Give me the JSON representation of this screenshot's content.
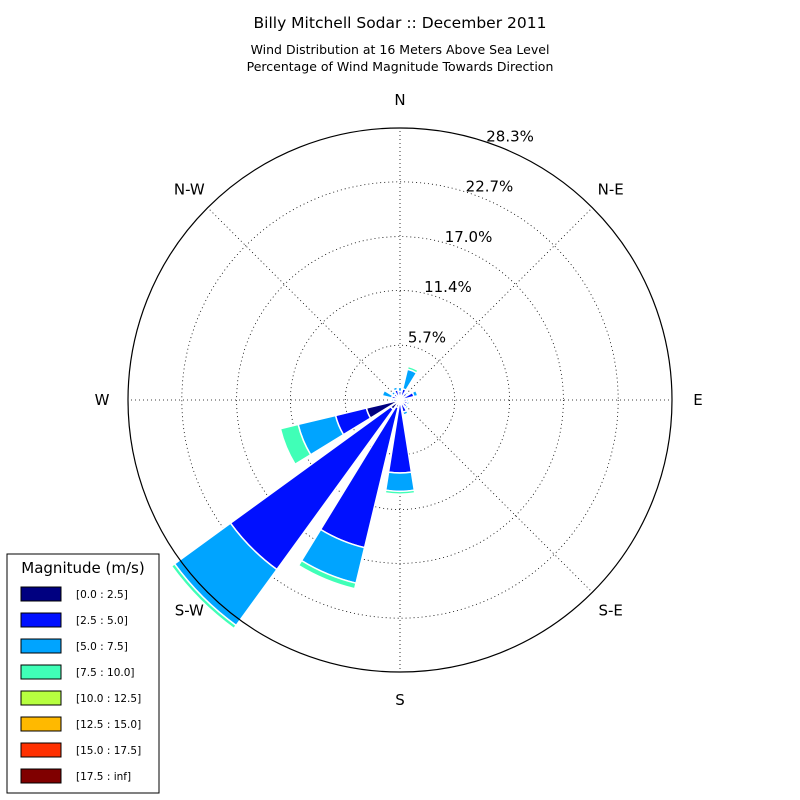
{
  "chart_data": {
    "type": "windrose",
    "title": "Billy Mitchell Sodar :: December 2011",
    "subtitle_lines": [
      "Wind Distribution at 16 Meters Above Sea Level",
      "Percentage of Wind Magnitude Towards Direction"
    ],
    "directions": [
      "N",
      "N-E",
      "E",
      "S-E",
      "S",
      "S-W",
      "W",
      "N-W"
    ],
    "rmax": 28.3,
    "ring_labels": [
      "5.7%",
      "11.4%",
      "17.0%",
      "22.7%",
      "28.3%"
    ],
    "ring_values": [
      5.7,
      11.4,
      17.0,
      22.7,
      28.3
    ],
    "grid": true,
    "legend": {
      "title": "Magnitude (m/s)",
      "placement": "lower-left",
      "bins": [
        {
          "label": "[0.0 : 2.5]",
          "color": "#000080"
        },
        {
          "label": "[2.5 : 5.0]",
          "color": "#0010ff"
        },
        {
          "label": "[5.0 : 7.5]",
          "color": "#00a4ff"
        },
        {
          "label": "[7.5 : 10.0]",
          "color": "#40ffb7"
        },
        {
          "label": "[10.0 : 12.5]",
          "color": "#b7ff40"
        },
        {
          "label": "[12.5 : 15.0]",
          "color": "#ffb900"
        },
        {
          "label": "[15.0 : 17.5]",
          "color": "#ff3000"
        },
        {
          "label": "[17.5 : inf]",
          "color": "#800000"
        }
      ]
    },
    "sectors": [
      {
        "dir_deg": 0,
        "values": [
          0.4,
          0.5,
          0.4,
          0.0,
          0,
          0,
          0,
          0
        ]
      },
      {
        "dir_deg": 22.5,
        "values": [
          0.3,
          0.9,
          2.1,
          0.3,
          0,
          0,
          0,
          0
        ]
      },
      {
        "dir_deg": 45,
        "values": [
          0.3,
          0.6,
          0.2,
          0.0,
          0,
          0,
          0,
          0
        ]
      },
      {
        "dir_deg": 67.5,
        "values": [
          0.3,
          1.2,
          0.4,
          0.0,
          0,
          0,
          0,
          0
        ]
      },
      {
        "dir_deg": 90,
        "values": [
          0.3,
          0.4,
          0.2,
          0.0,
          0,
          0,
          0,
          0
        ]
      },
      {
        "dir_deg": 112.5,
        "values": [
          0.3,
          0.5,
          0.2,
          0.0,
          0,
          0,
          0,
          0
        ]
      },
      {
        "dir_deg": 135,
        "values": [
          0.3,
          0.6,
          0.2,
          0.0,
          0,
          0,
          0,
          0
        ]
      },
      {
        "dir_deg": 157.5,
        "values": [
          0.3,
          1.0,
          0.3,
          0.0,
          0,
          0,
          0,
          0
        ]
      },
      {
        "dir_deg": 180,
        "values": [
          0.4,
          7.2,
          1.9,
          0.3,
          0,
          0,
          0,
          0
        ]
      },
      {
        "dir_deg": 202.5,
        "values": [
          0.8,
          15.0,
          3.8,
          0.6,
          0,
          0,
          0,
          0
        ]
      },
      {
        "dir_deg": 225,
        "values": [
          1.2,
          20.6,
          7.2,
          0.4,
          0,
          0,
          0,
          0
        ]
      },
      {
        "dir_deg": 247.5,
        "values": [
          3.6,
          3.3,
          4.0,
          1.9,
          0,
          0,
          0,
          0
        ]
      },
      {
        "dir_deg": 270,
        "values": [
          0.3,
          0.4,
          0.2,
          0.0,
          0,
          0,
          0,
          0
        ]
      },
      {
        "dir_deg": 292.5,
        "values": [
          0.3,
          0.6,
          1.0,
          0.0,
          0,
          0,
          0,
          0
        ]
      },
      {
        "dir_deg": 315,
        "values": [
          0.3,
          0.5,
          0.3,
          0.0,
          0,
          0,
          0,
          0
        ]
      },
      {
        "dir_deg": 337.5,
        "values": [
          0.3,
          0.8,
          0.3,
          0.0,
          0,
          0,
          0,
          0
        ]
      }
    ]
  }
}
